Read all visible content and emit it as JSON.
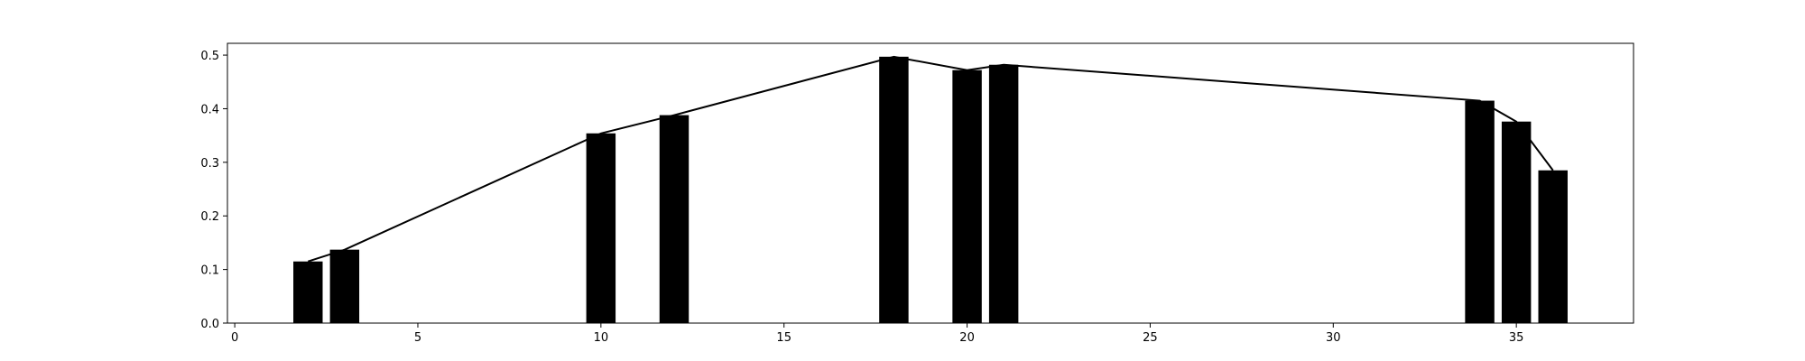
{
  "chart_data": {
    "type": "bar",
    "x": [
      2,
      3,
      10,
      12,
      18,
      20,
      21,
      34,
      35,
      36
    ],
    "values": [
      0.115,
      0.137,
      0.354,
      0.388,
      0.497,
      0.472,
      0.482,
      0.415,
      0.376,
      0.285
    ],
    "overlay": {
      "type": "line",
      "x": [
        2,
        3,
        10,
        12,
        18,
        20,
        21,
        34,
        35,
        36
      ],
      "values": [
        0.115,
        0.137,
        0.354,
        0.388,
        0.497,
        0.472,
        0.482,
        0.415,
        0.376,
        0.285
      ]
    },
    "title": "",
    "xlabel": "",
    "ylabel": "",
    "xlim": [
      -0.2,
      38.2
    ],
    "ylim": [
      0,
      0.522
    ],
    "xticks": [
      0,
      5,
      10,
      15,
      20,
      25,
      30,
      35
    ],
    "yticks": [
      0.0,
      0.1,
      0.2,
      0.3,
      0.4,
      0.5
    ],
    "ytick_labels": [
      "0.0",
      "0.1",
      "0.2",
      "0.3",
      "0.4",
      "0.5"
    ],
    "grid": false,
    "colors": {
      "bars": "#000000",
      "line": "#000000",
      "axes": "#000000"
    }
  }
}
